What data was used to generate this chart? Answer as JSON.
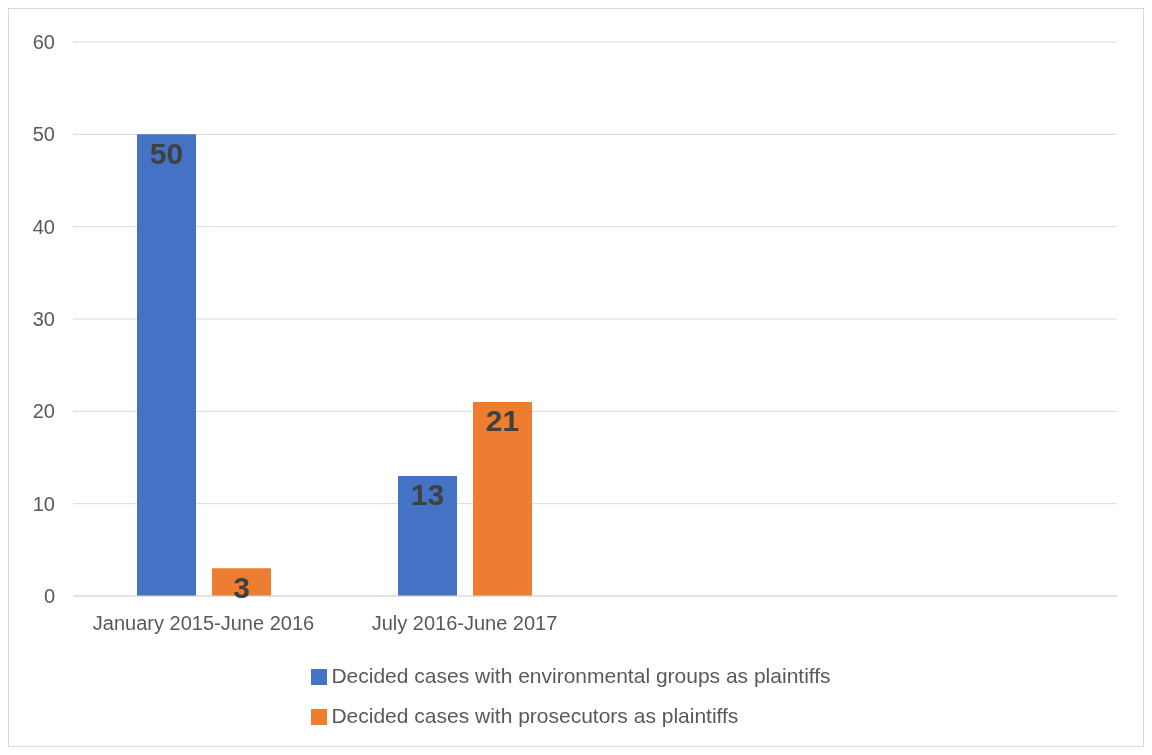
{
  "chart_data": {
    "type": "bar",
    "categories": [
      "January 2015-June 2016",
      "July 2016-June 2017",
      null,
      null
    ],
    "series": [
      {
        "name": "Decided cases with environmental groups as plaintiffs",
        "color": "#4472c4",
        "values": [
          50,
          13,
          null,
          null
        ]
      },
      {
        "name": "Decided cases with prosecutors as plaintiffs",
        "color": "#ed7d31",
        "values": [
          3,
          21,
          null,
          null
        ]
      }
    ],
    "ylim": [
      0,
      60
    ],
    "yticks": [
      0,
      10,
      20,
      30,
      40,
      50,
      60
    ],
    "grid": "y",
    "legend": "bottom",
    "data_labels": true
  }
}
